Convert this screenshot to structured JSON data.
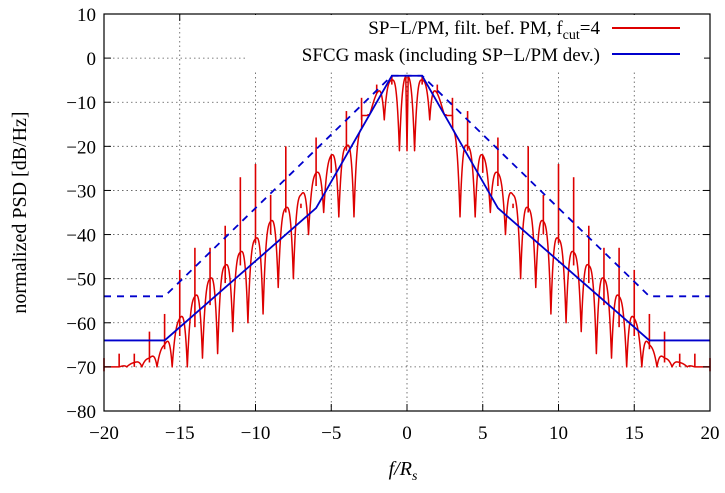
{
  "chart_data": {
    "type": "line",
    "xlabel": "f/R",
    "xlabel_sub": "s",
    "ylabel": "normalized PSD [dB/Hz]",
    "xlim": [
      -20,
      20
    ],
    "ylim": [
      -80,
      10
    ],
    "xticks": [
      -20,
      -15,
      -10,
      -5,
      0,
      5,
      10,
      15,
      20
    ],
    "xtick_labels": [
      "−20",
      "−15",
      "−10",
      "−5",
      "0",
      "5",
      "10",
      "15",
      "20"
    ],
    "yticks": [
      -80,
      -70,
      -60,
      -50,
      -40,
      -30,
      -20,
      -10,
      0,
      10
    ],
    "ytick_labels": [
      "−80",
      "−70",
      "−60",
      "−50",
      "−40",
      "−30",
      "−20",
      "−10",
      "0",
      "10"
    ],
    "grid": true,
    "legend_position": "top-right",
    "series": [
      {
        "name": "SP−L/PM, filt. bef. PM, fcut=4",
        "legend_main": "SP−L/PM, filt. bef. PM, f",
        "legend_sub": "cut",
        "legend_tail": "=4",
        "color": "#dd0000",
        "style": "solid",
        "envelope_x": [
          0,
          0.5,
          1,
          1.5,
          2,
          2.5,
          3,
          3.5,
          4,
          4.5,
          5,
          5.5,
          6,
          7,
          8,
          9,
          10,
          11,
          12,
          13,
          14,
          15,
          16,
          17,
          18,
          19,
          20
        ],
        "envelope_y": [
          -4,
          -4.5,
          -5,
          -5.5,
          -8,
          -12,
          -16,
          -18,
          -20,
          -21,
          -22,
          -25,
          -26,
          -31,
          -34,
          -37,
          -41,
          -44,
          -47,
          -50,
          -54,
          -59,
          -65,
          -68,
          -69,
          -70,
          -71
        ],
        "null_depth_y": [
          -21,
          -14,
          -13,
          -36,
          -36,
          -35,
          -40,
          -50,
          -52,
          -58,
          -60,
          -62,
          -67,
          -68,
          -70
        ],
        "spike_x": [
          1,
          2,
          3,
          4,
          5,
          6,
          7,
          8,
          9,
          10,
          11,
          12,
          13,
          14,
          15,
          16,
          17,
          18,
          19,
          20
        ],
        "spike_y": [
          -4,
          -6,
          -9,
          -12,
          -22,
          -18,
          -34,
          -20,
          -31,
          -24,
          -27,
          -38,
          -43,
          -43,
          -48,
          -58,
          -62,
          -67,
          -67,
          -68
        ],
        "spike_base_y": [
          -6,
          -8,
          -14,
          -21,
          -26,
          -29,
          -33,
          -35,
          -40,
          -42,
          -47,
          -51,
          -56,
          -61,
          -63,
          -66,
          -69,
          -70,
          -70,
          -71
        ]
      },
      {
        "name": "SFCG mask (including SP−L/PM dev.)",
        "color": "#0000cc",
        "style": "solid",
        "x": [
          -20,
          -16,
          -6,
          -1,
          1,
          6,
          16,
          20
        ],
        "y": [
          -64,
          -64,
          -34,
          -4,
          -4,
          -34,
          -64,
          -64
        ]
      },
      {
        "name": "",
        "color": "#0000cc",
        "style": "dashed",
        "x": [
          -20,
          -16,
          -1,
          1,
          16,
          20
        ],
        "y": [
          -54,
          -54,
          -4,
          -4,
          -54,
          -54
        ]
      }
    ]
  }
}
